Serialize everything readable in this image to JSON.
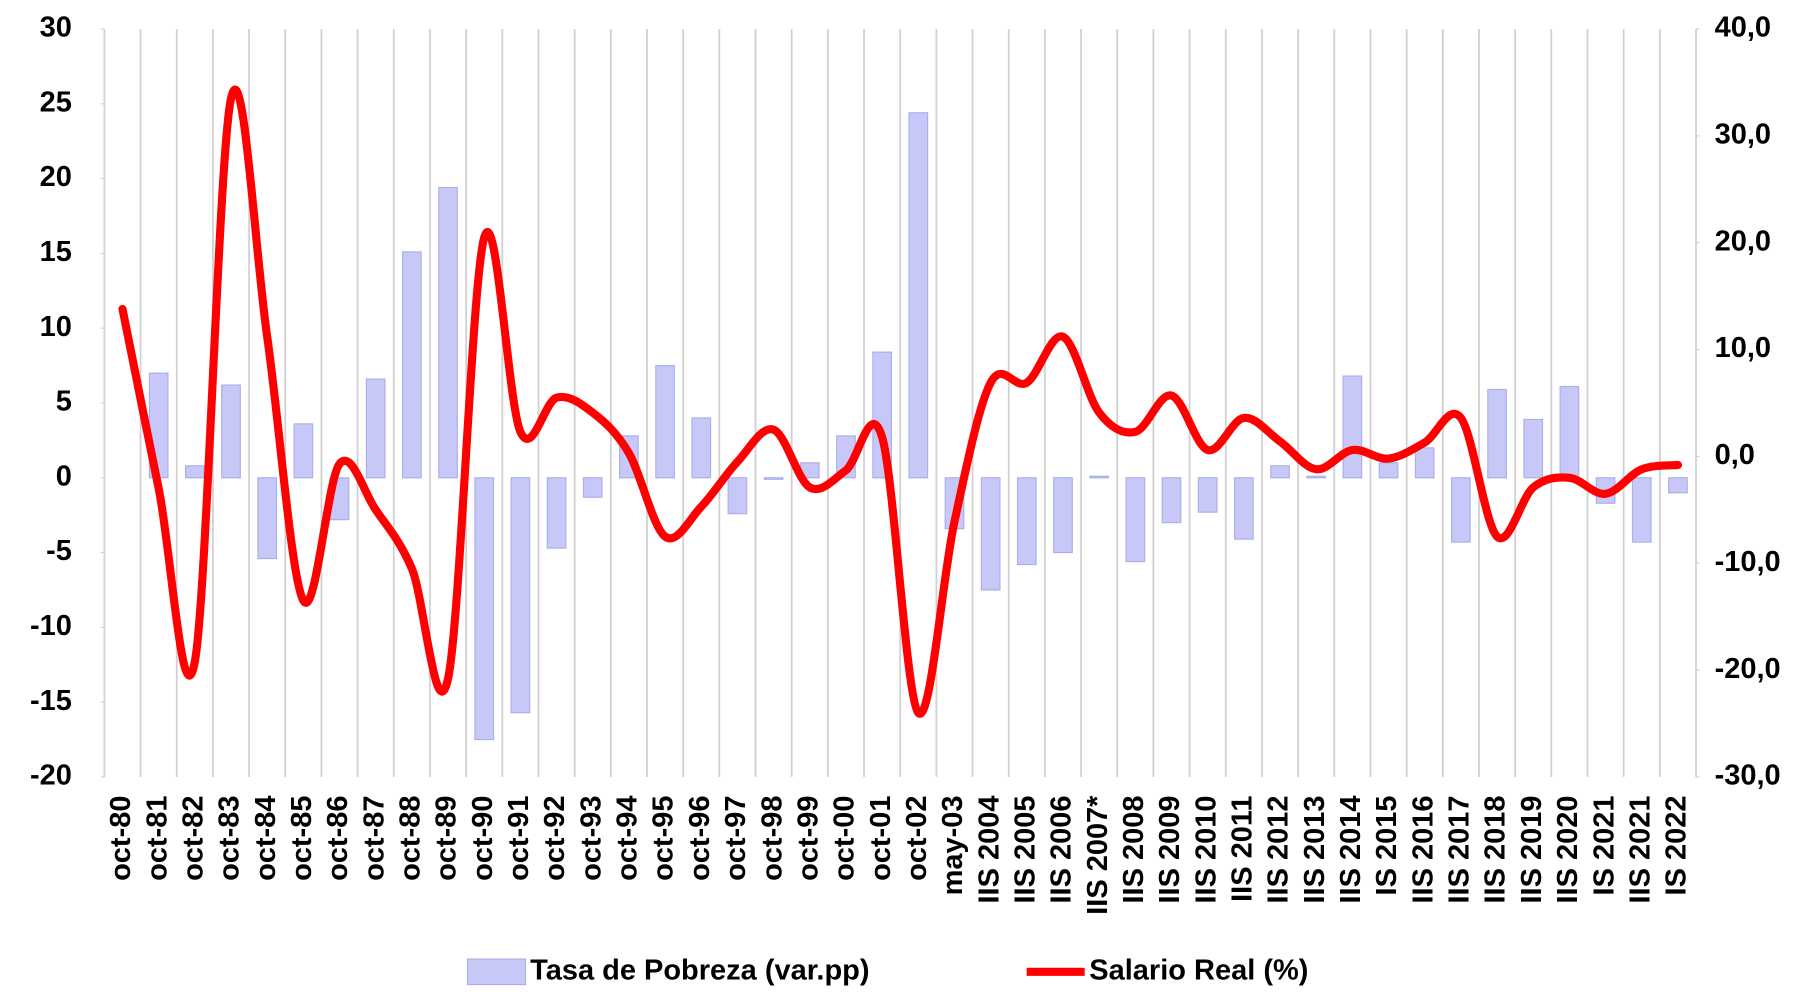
{
  "chart_data": {
    "type": "bar_line",
    "categories": [
      "oct-80",
      "oct-81",
      "oct-82",
      "oct-83",
      "oct-84",
      "oct-85",
      "oct-86",
      "oct-87",
      "oct-88",
      "oct-89",
      "oct-90",
      "oct-91",
      "oct-92",
      "oct-93",
      "oct-94",
      "oct-95",
      "oct-96",
      "oct-97",
      "oct-98",
      "oct-99",
      "oct-00",
      "oct-01",
      "oct-02",
      "may-03",
      "IIS 2004",
      "IIS 2005",
      "IIS 2006",
      "IIS 2007*",
      "IIS 2008",
      "IIS 2009",
      "IIS 2010",
      "IIS 2011",
      "IIS 2012",
      "IIS 2013",
      "IIS 2014",
      "IS 2015",
      "IIS 2016",
      "IIS 2017",
      "IIS 2018",
      "IIS 2019",
      "IIS 2020",
      "IS 2021",
      "IIS 2021",
      "IS 2022"
    ],
    "series": [
      {
        "name": "Tasa de Pobreza (var.pp)",
        "type": "bar",
        "axis": "y",
        "color": "#c8c8f8",
        "edge": "#a8b0e8",
        "values": [
          null,
          7,
          0.8,
          6.2,
          -5.4,
          3.6,
          -2.8,
          6.6,
          15.1,
          19.4,
          -17.5,
          -15.7,
          -4.7,
          -1.3,
          2.8,
          7.5,
          4,
          -2.4,
          -0.1,
          1.0,
          2.8,
          8.4,
          24.4,
          -3.4,
          -7.5,
          -5.8,
          -5.0,
          0.1,
          -5.6,
          -3.0,
          -2.3,
          -4.1,
          0.8,
          0.1,
          6.8,
          1.0,
          2.0,
          -4.3,
          5.9,
          3.9,
          6.1,
          -1.7,
          -4.3,
          -1.0
        ]
      },
      {
        "name": "Salario Real (%)",
        "type": "line",
        "axis": "y2",
        "color": "#ff0000",
        "values": [
          13.8,
          -3,
          -19.2,
          33.5,
          11.2,
          -13.5,
          -0.7,
          -5,
          -10.5,
          -20.8,
          20.5,
          2.3,
          5.5,
          4.1,
          0.3,
          -7.5,
          -4.7,
          -0.5,
          2.5,
          -2.9,
          -1.3,
          1.8,
          -24.0,
          -6.1,
          6.9,
          6.9,
          11.2,
          4.1,
          2.3,
          5.7,
          0.6,
          3.6,
          1.4,
          -1.2,
          0.6,
          -0.2,
          1.3,
          3.6,
          -7.5,
          -2.9,
          -2.0,
          -3.5,
          -1.2,
          -0.8
        ]
      }
    ],
    "ylim": [
      -20,
      30
    ],
    "yticks": [
      -20,
      -15,
      -10,
      -5,
      0,
      5,
      10,
      15,
      20,
      25,
      30
    ],
    "y2lim": [
      -30,
      40
    ],
    "y2ticks": [
      {
        "value": -30,
        "label": "-30,0"
      },
      {
        "value": -20,
        "label": "-20,0"
      },
      {
        "value": -10,
        "label": "-10,0"
      },
      {
        "value": 0,
        "label": "0,0"
      },
      {
        "value": 10,
        "label": "10,0"
      },
      {
        "value": 20,
        "label": "20,0"
      },
      {
        "value": 30,
        "label": "30,0"
      },
      {
        "value": 40,
        "label": "40,0"
      }
    ],
    "grid": "x",
    "legend": "bottom"
  }
}
